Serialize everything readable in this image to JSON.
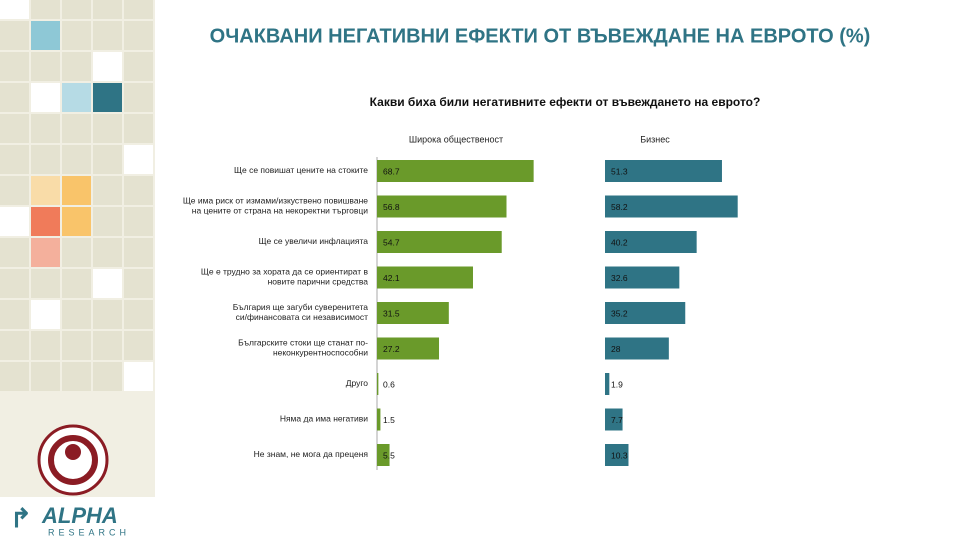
{
  "chart_data": {
    "type": "bar",
    "title": "ОЧАКВАНИ НЕГАТИВНИ ЕФЕКТИ ОТ ВЪВЕЖДАНЕ НА ЕВРОТО (%)",
    "subtitle": "Какви биха били негативните ефекти от въвеждането на еврото?",
    "categories": [
      "Ще се повишат цените на стоките",
      "Ще има риск от измами/изкуствено повишване\nна цените от страна на некоректни търговци",
      "Ще се увеличи инфлацията",
      "Ще е трудно за хората да се ориентират в\nновите парични средства",
      "България ще загуби суверенитета\nси/финансовата си независимост",
      "Българските стоки ще станат по-\nнеконкурентноспособни",
      "Друго",
      "Няма да има негативи",
      "Не знам, не мога да преценя"
    ],
    "series": [
      {
        "name": "Широка общественост",
        "color": "#6a9a2a",
        "values": [
          68.7,
          56.8,
          54.7,
          42.1,
          31.5,
          27.2,
          0.6,
          1.5,
          5.5
        ]
      },
      {
        "name": "Бизнес",
        "color": "#2f7485",
        "values": [
          51.3,
          58.2,
          40.2,
          32.6,
          35.2,
          28,
          1.9,
          7.7,
          10.3
        ]
      }
    ]
  },
  "logo": {
    "name": "ALPHA",
    "sub": "RESEARCH"
  }
}
